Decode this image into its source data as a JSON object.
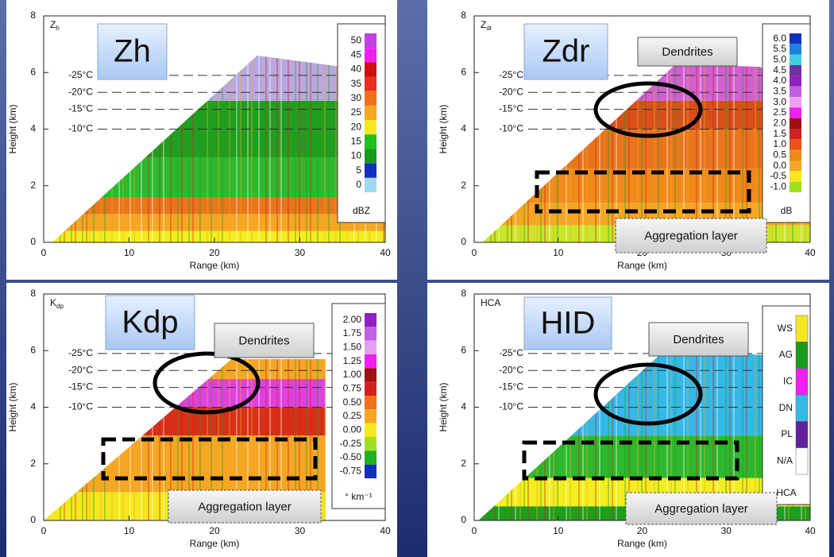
{
  "chart_data": [
    {
      "type": "rhi",
      "title": {
        "main": "Z",
        "sub": "h"
      },
      "badge": "Zh",
      "xlabel": "Range (km)",
      "ylabel": "Height (km)",
      "xlim": [
        0,
        40
      ],
      "ylim": [
        0,
        8
      ],
      "xticks": [
        0,
        10,
        20,
        30,
        40
      ],
      "yticks": [
        0,
        2,
        4,
        6,
        8
      ],
      "isotherms": [
        {
          "label": "-25°C",
          "value": 5.9
        },
        {
          "label": "-20°C",
          "value": 5.3
        },
        {
          "label": "-15°C",
          "value": 4.7
        },
        {
          "label": "-10°C",
          "value": 4.0
        }
      ],
      "colorbar": {
        "labels": [
          "50",
          "45",
          "40",
          "35",
          "30",
          "25",
          "20",
          "15",
          "10",
          "5",
          "0"
        ],
        "colors": [
          "#c040e0",
          "#f020f0",
          "#d01010",
          "#e83020",
          "#f07018",
          "#f5a623",
          "#f5e81e",
          "#20c020",
          "#1a9a1a",
          "#1030c0",
          "#a0d8f0"
        ],
        "unit": "dBZ"
      },
      "annotations": []
    },
    {
      "type": "rhi",
      "title": {
        "main": "Z",
        "sub": "dr"
      },
      "badge": "Zdr",
      "xlabel": "Range (km)",
      "ylabel": "Height (km)",
      "xlim": [
        0,
        40
      ],
      "ylim": [
        0,
        8
      ],
      "xticks": [
        0,
        10,
        20,
        30,
        40
      ],
      "yticks": [
        0,
        2,
        4,
        6,
        8
      ],
      "isotherms": [
        {
          "label": "-25°C",
          "value": 5.9
        },
        {
          "label": "-20°C",
          "value": 5.3
        },
        {
          "label": "-15°C",
          "value": 4.7
        },
        {
          "label": "-10°C",
          "value": 4.0
        }
      ],
      "colorbar": {
        "labels": [
          "6.0",
          "5.5",
          "5.0",
          "4.5",
          "4.0",
          "3.5",
          "3.0",
          "2.5",
          "2.0",
          "1.5",
          "1.0",
          "0.5",
          "0.0",
          "-0.5",
          "-1.0"
        ],
        "colors": [
          "#1030c0",
          "#2080e0",
          "#40d0e0",
          "#7030a0",
          "#9020c0",
          "#c060e0",
          "#f0a0f0",
          "#f020f0",
          "#a01010",
          "#d02020",
          "#f05018",
          "#f08a1a",
          "#f5a623",
          "#f5e81e",
          "#a0e020"
        ],
        "unit": "dB"
      },
      "annotations": [
        "Dendrites",
        "Aggregation layer"
      ]
    },
    {
      "type": "rhi",
      "title": {
        "main": "K",
        "sub": "dp"
      },
      "badge": "Kdp",
      "xlabel": "Range (km)",
      "ylabel": "Height (km)",
      "xlim": [
        0,
        40
      ],
      "ylim": [
        0,
        8
      ],
      "xticks": [
        0,
        10,
        20,
        30,
        40
      ],
      "yticks": [
        0,
        2,
        4,
        6,
        8
      ],
      "isotherms": [
        {
          "label": "-25°C",
          "value": 5.9
        },
        {
          "label": "-20°C",
          "value": 5.3
        },
        {
          "label": "-15°C",
          "value": 4.7
        },
        {
          "label": "-10°C",
          "value": 4.0
        }
      ],
      "colorbar": {
        "labels": [
          "2.00",
          "1.75",
          "1.50",
          "1.25",
          "1.00",
          "0.75",
          "0.50",
          "0.25",
          "0.00",
          "-0.25",
          "-0.50",
          "-0.75"
        ],
        "colors": [
          "#9020c0",
          "#c060e0",
          "#e0a0f0",
          "#f020f0",
          "#a01010",
          "#d02020",
          "#f07018",
          "#f5a623",
          "#f5e81e",
          "#a0e020",
          "#20b020",
          "#1030c0"
        ],
        "unit": "° km⁻¹"
      },
      "annotations": [
        "Dendrites",
        "Aggregation layer"
      ]
    },
    {
      "type": "rhi",
      "title": {
        "main": "HCA"
      },
      "badge": "HID",
      "xlabel": "Range (km)",
      "ylabel": "Height (km)",
      "xlim": [
        0,
        40
      ],
      "ylim": [
        0,
        8
      ],
      "xticks": [
        0,
        10,
        20,
        30,
        40
      ],
      "yticks": [
        0,
        2,
        4,
        6,
        8
      ],
      "isotherms": [
        {
          "label": "-25°C",
          "value": 5.9
        },
        {
          "label": "-20°C",
          "value": 5.3
        },
        {
          "label": "-15°C",
          "value": 4.7
        },
        {
          "label": "-10°C",
          "value": 4.0
        }
      ],
      "colorbar": {
        "labels": [
          "WS",
          "AG",
          "IC",
          "DN",
          "PL",
          "N/A"
        ],
        "colors": [
          "#f5e81e",
          "#1a9a1a",
          "#f020f0",
          "#35b8e8",
          "#6020a0",
          "#ffffff"
        ],
        "unit": "HCA"
      },
      "annotations": [
        "Dendrites",
        "Aggregation layer"
      ]
    }
  ]
}
